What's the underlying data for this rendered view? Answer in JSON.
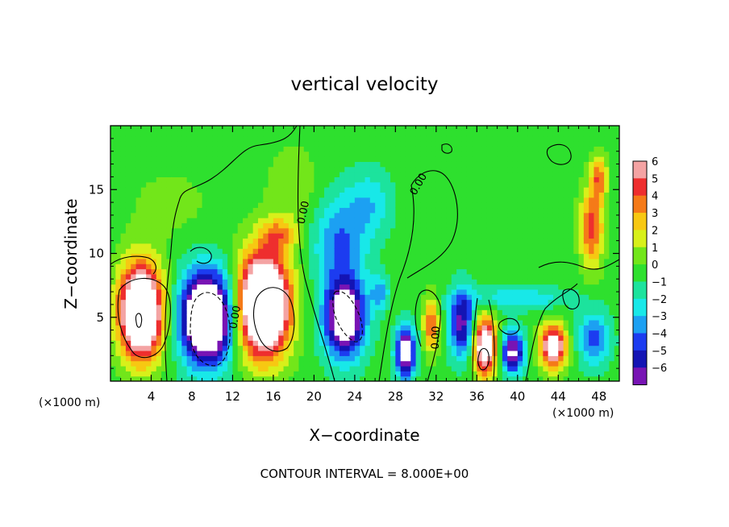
{
  "chart_data": {
    "type": "heatmap",
    "title": "vertical velocity",
    "xlabel": "X−coordinate",
    "ylabel": "Z−coordinate",
    "x_unit_label": "(×1000 m)",
    "footer": "CONTOUR INTERVAL = 8.000E+00",
    "xlim": [
      0,
      50
    ],
    "ylim": [
      0,
      20
    ],
    "x_ticks": [
      4,
      8,
      12,
      16,
      20,
      24,
      28,
      32,
      36,
      40,
      44,
      48
    ],
    "y_ticks": [
      5,
      10,
      15
    ],
    "colorbar": {
      "levels": [
        6,
        5,
        4,
        3,
        2,
        1,
        0,
        -1,
        -2,
        -3,
        -4,
        -5,
        -6
      ],
      "labels": [
        "6",
        "5",
        "4",
        "3",
        "2",
        "1",
        "0",
        "−1",
        "−2",
        "−3",
        "−4",
        "−5",
        "−6"
      ],
      "colors": [
        "#f4a3a3",
        "#ee2e2e",
        "#f57a18",
        "#f7c812",
        "#d8f01a",
        "#72e61a",
        "#2ee02e",
        "#1ce39d",
        "#18e8e8",
        "#1ca0f2",
        "#1c3cf0",
        "#1414b4",
        "#7814b4"
      ]
    },
    "contour_labels": [
      {
        "text": "0.00",
        "x": 19.0,
        "z": 13.2,
        "rotate": -78
      },
      {
        "text": "0.00",
        "x": 30.3,
        "z": 15.4,
        "rotate": -60
      },
      {
        "text": "0.00",
        "x": 12.3,
        "z": 5.0,
        "rotate": -80
      },
      {
        "text": "0.00",
        "x": 32.0,
        "z": 3.4,
        "rotate": -88
      }
    ],
    "features": [
      {
        "x": 3.0,
        "z": 5.5,
        "rx": 2.4,
        "rz": 4.2,
        "w": 12
      },
      {
        "x": 9.5,
        "z": 5.0,
        "rx": 2.9,
        "rz": 4.0,
        "w": -12
      },
      {
        "x": 15.0,
        "z": 6.0,
        "rx": 2.9,
        "rz": 4.5,
        "w": 13
      },
      {
        "x": 23.0,
        "z": 5.0,
        "rx": 2.3,
        "rz": 3.5,
        "w": -9
      },
      {
        "x": 22.5,
        "z": 11.0,
        "rx": 3.0,
        "rz": 4.0,
        "w": -3.5
      },
      {
        "x": 25.5,
        "z": 14.0,
        "rx": 2.5,
        "rz": 3.0,
        "w": -2.2
      },
      {
        "x": 29.0,
        "z": 2.3,
        "rx": 1.1,
        "rz": 2.3,
        "w": -8
      },
      {
        "x": 31.5,
        "z": 4.5,
        "rx": 0.9,
        "rz": 2.5,
        "w": 4.5
      },
      {
        "x": 34.5,
        "z": 4.5,
        "rx": 1.4,
        "rz": 3.0,
        "w": -6
      },
      {
        "x": 36.8,
        "z": 2.7,
        "rx": 1.3,
        "rz": 2.6,
        "w": 9
      },
      {
        "x": 39.5,
        "z": 2.3,
        "rx": 1.3,
        "rz": 1.9,
        "w": -7
      },
      {
        "x": 43.5,
        "z": 2.7,
        "rx": 1.5,
        "rz": 2.0,
        "w": 8
      },
      {
        "x": 47.5,
        "z": 3.3,
        "rx": 1.8,
        "rz": 2.3,
        "w": -4
      },
      {
        "x": 47.3,
        "z": 12.0,
        "rx": 1.3,
        "rz": 3.5,
        "w": 5
      },
      {
        "x": 48.0,
        "z": 16.0,
        "rx": 0.9,
        "rz": 2.0,
        "w": 4
      },
      {
        "x": 16.5,
        "z": 11.5,
        "rx": 2.0,
        "rz": 1.5,
        "w": 3
      },
      {
        "x": 18.0,
        "z": 15.0,
        "rx": 3.0,
        "rz": 4.0,
        "w": 1.3
      },
      {
        "x": 6.0,
        "z": 14.0,
        "rx": 5.0,
        "rz": 3.5,
        "w": 0.8
      },
      {
        "x": 40.0,
        "z": 15.0,
        "rx": 5.0,
        "rz": 4.0,
        "w": 0.5
      },
      {
        "x": 40.0,
        "z": 6.5,
        "rx": 6.0,
        "rz": 1.0,
        "w": -2.5
      },
      {
        "x": 26.5,
        "z": 7.0,
        "rx": 1.0,
        "rz": 1.5,
        "w": -3
      }
    ]
  }
}
